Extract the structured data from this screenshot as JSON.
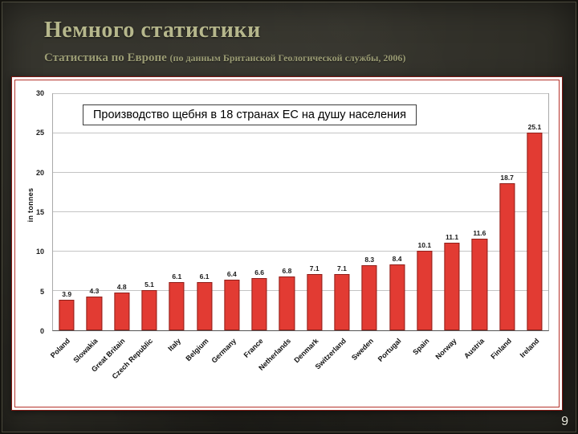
{
  "slide": {
    "title": "Немного статистики",
    "subtitle": "Статистика по Европе ",
    "subtitle_note": "(по данным Британской Геологической службы, 2006)",
    "page_number": "9"
  },
  "chart_data": {
    "type": "bar",
    "title": "Производство щебня в 18 странах ЕС на душу населения",
    "xlabel": "",
    "ylabel": "in tonnes",
    "ylim": [
      0,
      30
    ],
    "ytick_step": 5,
    "grid": true,
    "legend": false,
    "bar_color": "#e23b33",
    "bar_border_color": "#8f1f1a",
    "categories": [
      "Poland",
      "Slowakia",
      "Great Britain",
      "Czech Republic",
      "Italy",
      "Belgium",
      "Germany",
      "France",
      "Netherlands",
      "Denmark",
      "Switzerland",
      "Sweden",
      "Portugal",
      "Spain",
      "Norway",
      "Austria",
      "Finland",
      "Ireland"
    ],
    "values": [
      3.9,
      4.3,
      4.8,
      5.1,
      6.1,
      6.1,
      6.4,
      6.6,
      6.8,
      7.1,
      7.1,
      8.3,
      8.4,
      10.1,
      11.1,
      11.6,
      18.7,
      25.1
    ]
  }
}
